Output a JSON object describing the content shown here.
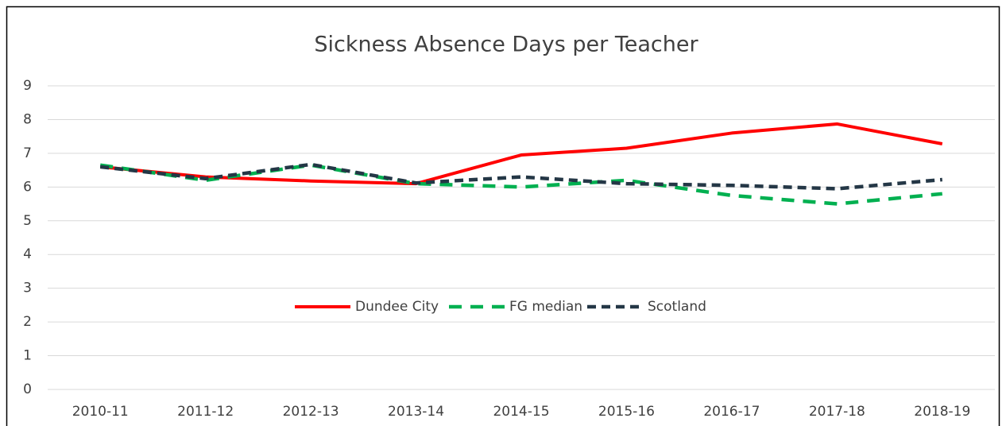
{
  "chart_data": {
    "type": "line",
    "title": "Sickness Absence Days per Teacher",
    "categories": [
      "2010-11",
      "2011-12",
      "2012-13",
      "2013-14",
      "2014-15",
      "2015-16",
      "2016-17",
      "2017-18",
      "2018-19"
    ],
    "series": [
      {
        "name": "Dundee City",
        "color": "#ff0000",
        "dash": false,
        "values": [
          6.6,
          6.3,
          6.18,
          6.1,
          6.95,
          7.15,
          7.6,
          7.87,
          7.28
        ]
      },
      {
        "name": "FG median",
        "color": "#00b050",
        "dash": true,
        "values": [
          6.65,
          6.2,
          6.65,
          6.1,
          6.0,
          6.2,
          5.75,
          5.5,
          5.8
        ]
      },
      {
        "name": "Scotland",
        "color": "#243746",
        "dash": true,
        "values": [
          6.6,
          6.25,
          6.67,
          6.12,
          6.3,
          6.1,
          6.05,
          5.95,
          6.22
        ]
      }
    ],
    "ylim": [
      0,
      9
    ],
    "yticks": [
      0,
      1,
      2,
      3,
      4,
      5,
      6,
      7,
      8,
      9
    ],
    "grid": true,
    "legend": "center"
  }
}
